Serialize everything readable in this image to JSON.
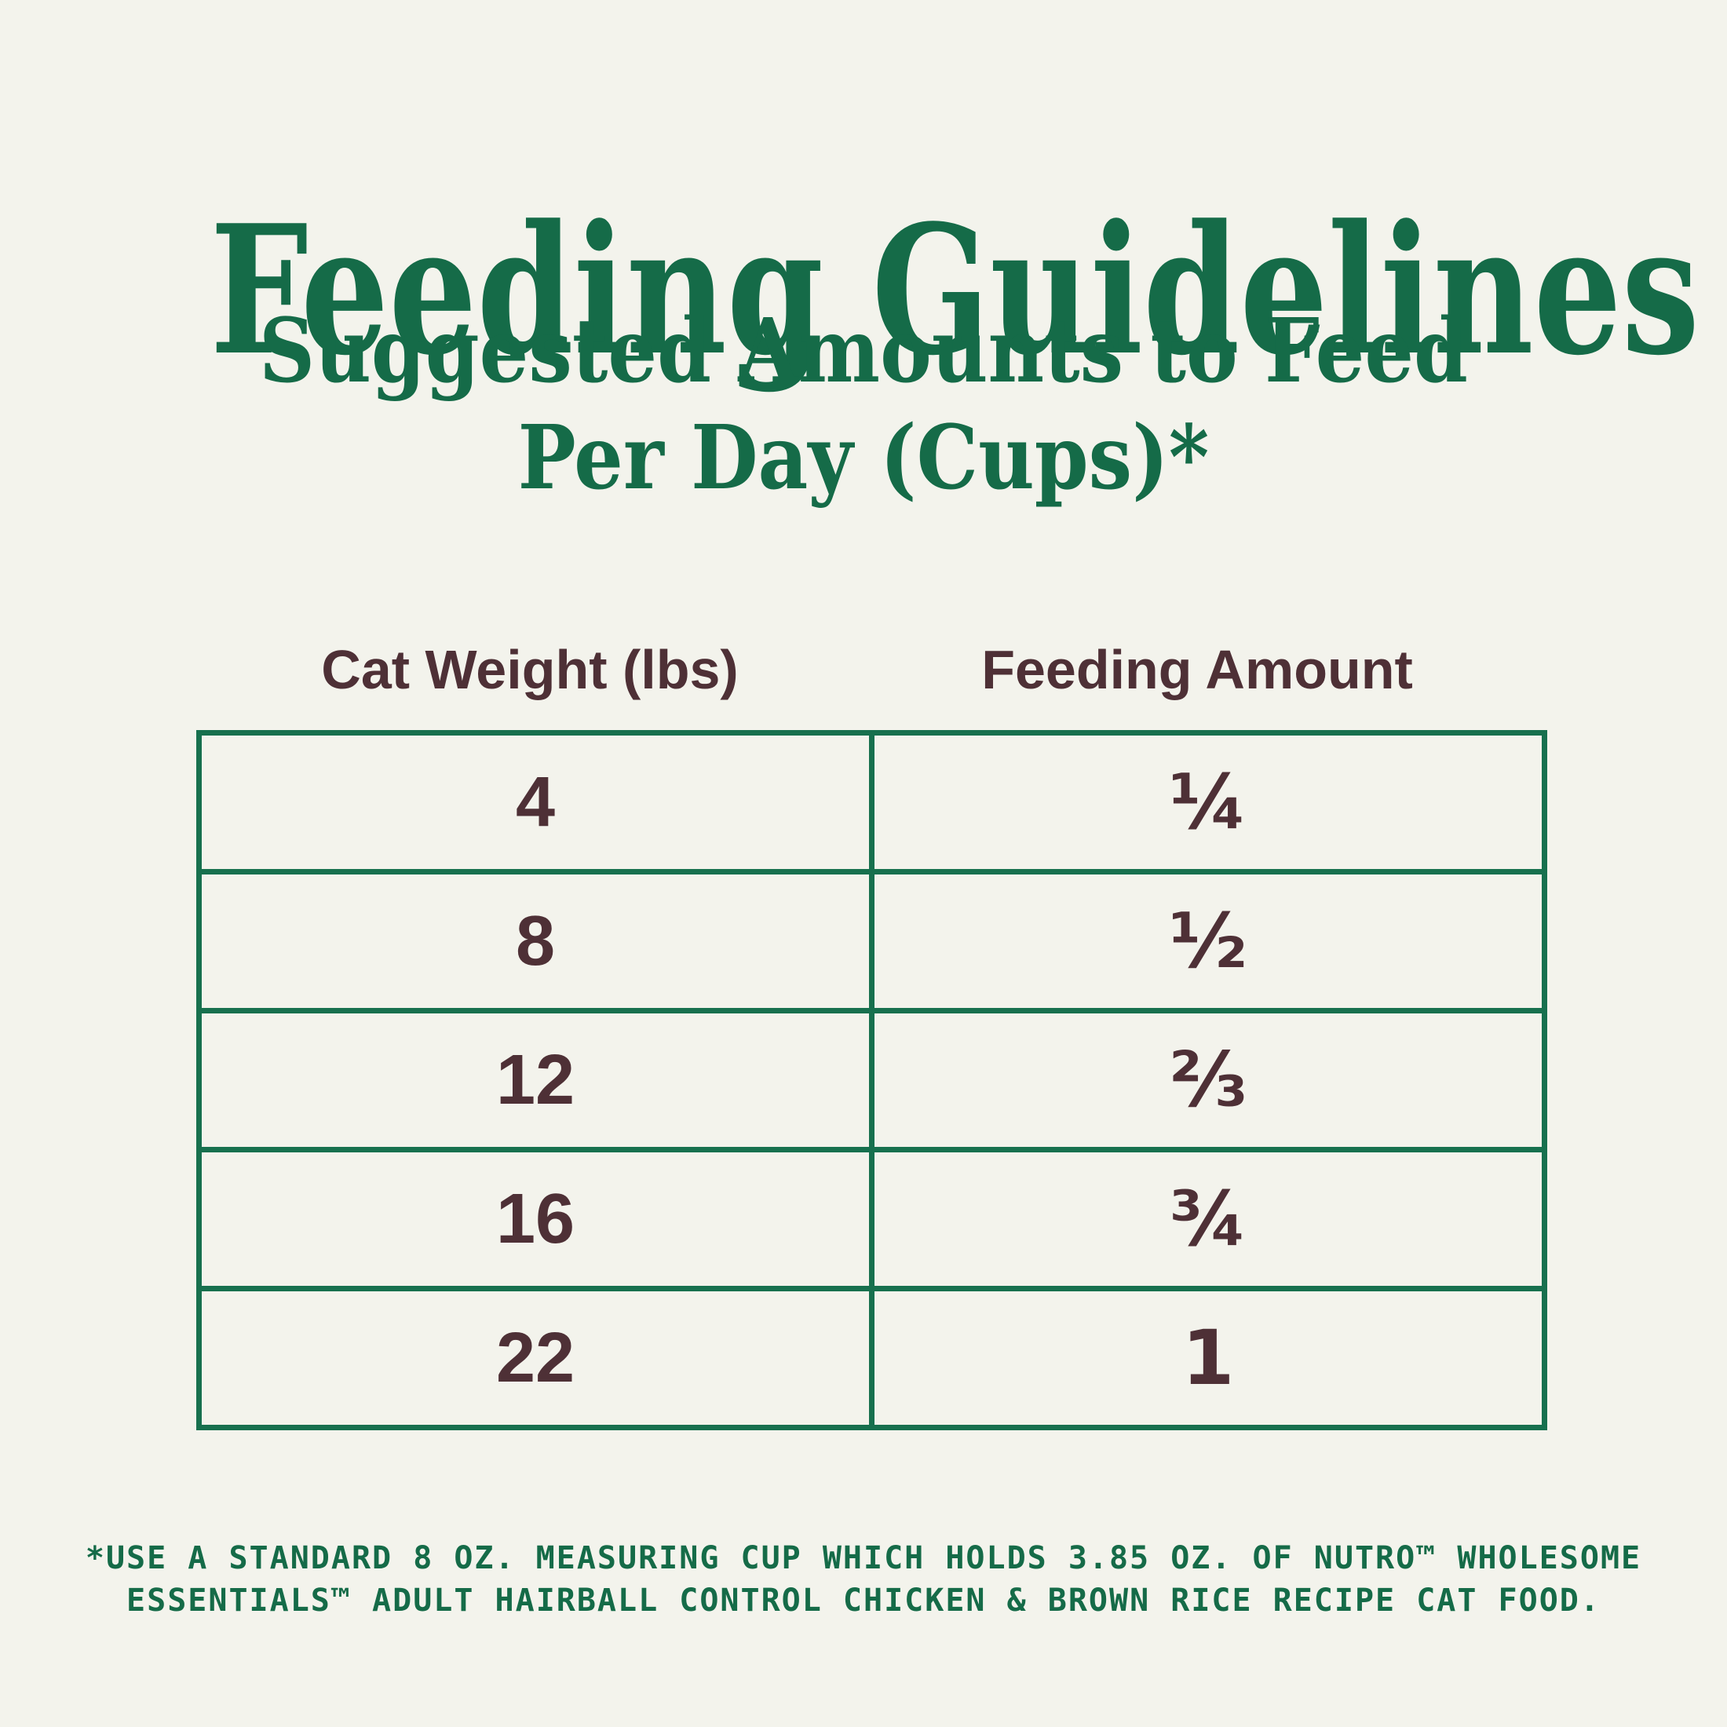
{
  "colors": {
    "green": "#156b48",
    "border-green": "#17704e",
    "brown": "#4e3036",
    "bg": "#f3f3ec"
  },
  "page": {
    "title": "Feeding Guidelines",
    "subtitle_line1": "Suggested Amounts to Feed",
    "subtitle_line2": "Per Day (Cups)*"
  },
  "table": {
    "columns": [
      "Cat Weight (lbs)",
      "Feeding Amount"
    ],
    "rows": [
      {
        "weight": "4",
        "amount": "¼"
      },
      {
        "weight": "8",
        "amount": "½"
      },
      {
        "weight": "12",
        "amount": "⅔"
      },
      {
        "weight": "16",
        "amount": "¾"
      },
      {
        "weight": "22",
        "amount": "1"
      }
    ]
  },
  "footnote": {
    "line1": "*USE A STANDARD 8 OZ. MEASURING CUP WHICH HOLDS 3.85 OZ. OF NUTRO™ WHOLESOME",
    "line2": "ESSENTIALS™ ADULT HAIRBALL CONTROL CHICKEN & BROWN RICE RECIPE CAT FOOD."
  }
}
